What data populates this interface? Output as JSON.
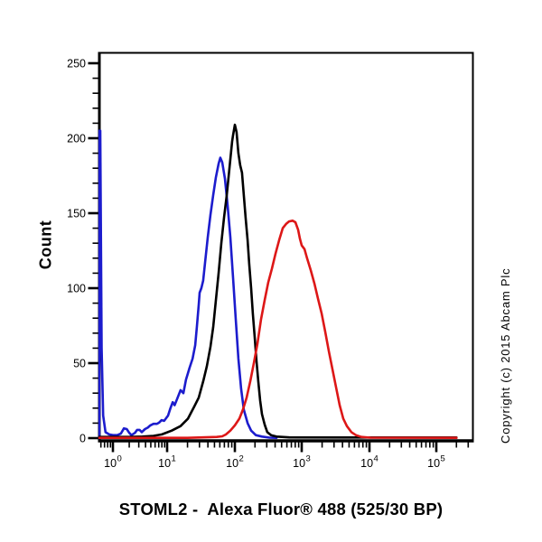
{
  "title": "STOML2 -  Alexa Fluor® 488 (525/30 BP)",
  "y_axis_title": "Count",
  "copyright": "Copyright (c) 2015 Abcam Plc",
  "chart_data": {
    "type": "line",
    "subtype": "flow-cytometry-histogram",
    "title": "STOML2 -  Alexa Fluor® 488 (525/30 BP)",
    "xlabel": "STOML2 -  Alexa Fluor® 488 (525/30 BP)",
    "ylabel": "Count",
    "grid": false,
    "legend": "none",
    "x_axis": {
      "scale": "log",
      "tick_exponents": [
        0,
        1,
        2,
        3,
        4,
        5
      ],
      "tick_label_base": "10",
      "minor_ticks": "log decades 2-9"
    },
    "y_axis": {
      "min": 0,
      "max": 250,
      "major_tick_step": 50,
      "minor_tick_step": 10,
      "tick_labels": [
        "0",
        "50",
        "100",
        "150",
        "200",
        "250"
      ]
    },
    "series": [
      {
        "name": "blue-histogram",
        "color": "#1c1ccd",
        "peak": {
          "x": 61,
          "count": 187
        },
        "points": [
          [
            0.56,
            0
          ],
          [
            0.565,
            205
          ],
          [
            0.585,
            205
          ],
          [
            0.62,
            60
          ],
          [
            0.66,
            15
          ],
          [
            0.73,
            4
          ],
          [
            0.85,
            2.5
          ],
          [
            1.0,
            2
          ],
          [
            1.2,
            2
          ],
          [
            1.4,
            3
          ],
          [
            1.6,
            6.5
          ],
          [
            1.8,
            6
          ],
          [
            2.0,
            3.5
          ],
          [
            2.2,
            2
          ],
          [
            2.55,
            3.5
          ],
          [
            2.8,
            5.5
          ],
          [
            3.1,
            5.5
          ],
          [
            3.4,
            4
          ],
          [
            3.9,
            6
          ],
          [
            4.4,
            7
          ],
          [
            4.9,
            8.5
          ],
          [
            5.6,
            9.5
          ],
          [
            6.5,
            9.5
          ],
          [
            7.2,
            10.5
          ],
          [
            7.9,
            12
          ],
          [
            8.8,
            11.5
          ],
          [
            10.3,
            15
          ],
          [
            11.2,
            20
          ],
          [
            12.1,
            24
          ],
          [
            12.9,
            22
          ],
          [
            14,
            26
          ],
          [
            15.8,
            32
          ],
          [
            17.4,
            30
          ],
          [
            19,
            39
          ],
          [
            21.5,
            47
          ],
          [
            23.8,
            53
          ],
          [
            26,
            62
          ],
          [
            27.5,
            74
          ],
          [
            29.3,
            89
          ],
          [
            30.2,
            97
          ],
          [
            32,
            100
          ],
          [
            34,
            105
          ],
          [
            36.3,
            117
          ],
          [
            39.8,
            134
          ],
          [
            43.7,
            149
          ],
          [
            47.9,
            162
          ],
          [
            52.5,
            174
          ],
          [
            57.5,
            183
          ],
          [
            61,
            187
          ],
          [
            65,
            184
          ],
          [
            71.3,
            173
          ],
          [
            78.2,
            155
          ],
          [
            85.7,
            134
          ],
          [
            94,
            107
          ],
          [
            103,
            80
          ],
          [
            113,
            53
          ],
          [
            124,
            33
          ],
          [
            136,
            19
          ],
          [
            155,
            10
          ],
          [
            175,
            5
          ],
          [
            206,
            2
          ],
          [
            254,
            1
          ],
          [
            330,
            0.3
          ],
          [
            420,
            0.2
          ]
        ]
      },
      {
        "name": "black-histogram",
        "color": "#000000",
        "peak": {
          "x": 100,
          "count": 209
        },
        "points": [
          [
            0.56,
            0.8
          ],
          [
            1,
            0.8
          ],
          [
            2,
            0.8
          ],
          [
            3.5,
            1
          ],
          [
            5.6,
            1.5
          ],
          [
            8,
            2.5
          ],
          [
            11.7,
            5
          ],
          [
            15.8,
            8
          ],
          [
            20.3,
            13
          ],
          [
            25.1,
            21
          ],
          [
            29.3,
            27
          ],
          [
            34.1,
            38
          ],
          [
            38.6,
            48
          ],
          [
            43.7,
            61
          ],
          [
            47.9,
            74
          ],
          [
            52.5,
            92
          ],
          [
            57.5,
            110
          ],
          [
            63.1,
            130
          ],
          [
            69.2,
            147
          ],
          [
            75.9,
            162
          ],
          [
            80.7,
            174
          ],
          [
            85.7,
            186
          ],
          [
            91.2,
            198
          ],
          [
            94,
            202
          ],
          [
            100,
            209
          ],
          [
            106,
            204
          ],
          [
            113,
            190
          ],
          [
            120,
            182
          ],
          [
            128,
            177
          ],
          [
            136,
            162
          ],
          [
            145,
            147
          ],
          [
            155,
            132
          ],
          [
            164,
            116
          ],
          [
            175,
            100
          ],
          [
            186,
            83
          ],
          [
            198,
            67
          ],
          [
            211,
            51
          ],
          [
            224,
            38
          ],
          [
            239,
            25
          ],
          [
            254,
            16
          ],
          [
            279,
            9
          ],
          [
            306,
            4
          ],
          [
            347,
            2
          ],
          [
            420,
            1
          ],
          [
            650,
            0.5
          ],
          [
            5000,
            0.4
          ],
          [
            200000,
            0.4
          ]
        ]
      },
      {
        "name": "red-histogram",
        "color": "#dd1717",
        "peak": {
          "x": 730,
          "count": 145
        },
        "points": [
          [
            0.56,
            0.2
          ],
          [
            20,
            0.2
          ],
          [
            54,
            0.8
          ],
          [
            65,
            1.2
          ],
          [
            73.6,
            2.4
          ],
          [
            85.7,
            5
          ],
          [
            100,
            8.5
          ],
          [
            117,
            13
          ],
          [
            132,
            19
          ],
          [
            150,
            27
          ],
          [
            170,
            38
          ],
          [
            192,
            50
          ],
          [
            218,
            63
          ],
          [
            246,
            79
          ],
          [
            279,
            92
          ],
          [
            316,
            104
          ],
          [
            358,
            113
          ],
          [
            405,
            123
          ],
          [
            459,
            132
          ],
          [
            520,
            140
          ],
          [
            589,
            143
          ],
          [
            647,
            144.5
          ],
          [
            730,
            145
          ],
          [
            804,
            144
          ],
          [
            883,
            139
          ],
          [
            940,
            133
          ],
          [
            1000,
            128.5
          ],
          [
            1100,
            126
          ],
          [
            1200,
            120
          ],
          [
            1360,
            112
          ],
          [
            1540,
            103
          ],
          [
            1740,
            93
          ],
          [
            1970,
            83
          ],
          [
            2220,
            71
          ],
          [
            2510,
            58
          ],
          [
            2840,
            46
          ],
          [
            3210,
            34
          ],
          [
            3630,
            22
          ],
          [
            4100,
            13
          ],
          [
            4640,
            8
          ],
          [
            5420,
            4
          ],
          [
            6310,
            2
          ],
          [
            7590,
            0.8
          ],
          [
            10400,
            0.3
          ],
          [
            200000,
            0.2
          ]
        ]
      }
    ]
  }
}
